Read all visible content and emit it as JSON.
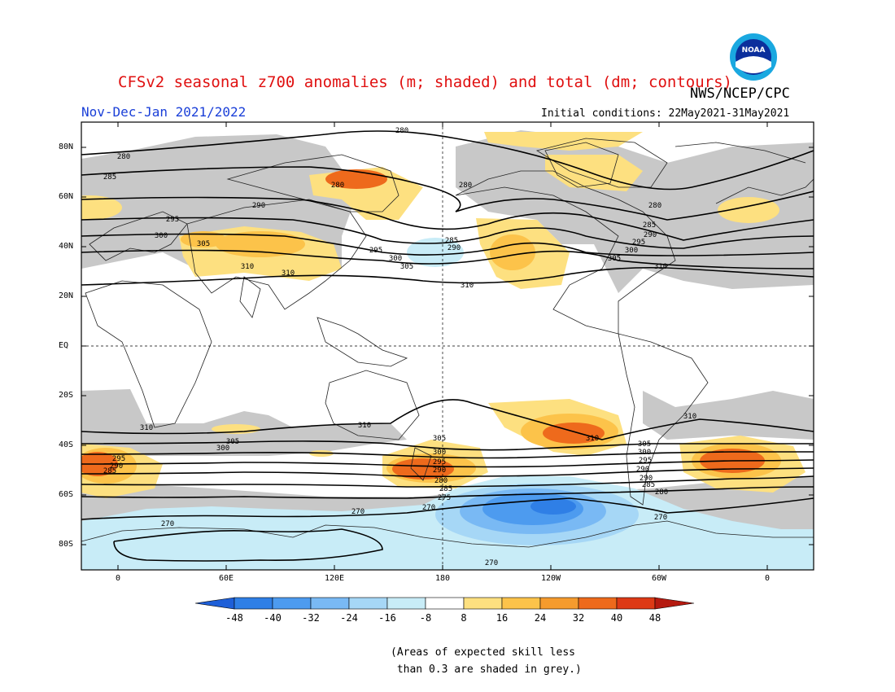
{
  "header": {
    "title": "CFSv2 seasonal z700 anomalies (m; shaded) and total (dm; contours)",
    "agency": "NWS/NCEP/CPC",
    "period": "Nov-Dec-Jan 2021/2022",
    "initial_conditions": "Initial conditions: 22May2021-31May2021",
    "logo_text": "NOAA"
  },
  "map": {
    "lat_labels": [
      "80N",
      "60N",
      "40N",
      "20N",
      "EQ",
      "20S",
      "40S",
      "60S",
      "80S"
    ],
    "lon_labels": [
      "0",
      "60E",
      "120E",
      "180",
      "120W",
      "60W",
      "0"
    ],
    "contour_labels": [
      "280",
      "285",
      "290",
      "295",
      "300",
      "305",
      "310",
      "305",
      "300",
      "295",
      "290",
      "285",
      "280",
      "275",
      "270"
    ],
    "grey_meaning": "low skill"
  },
  "colorbar": {
    "ticks": [
      "-48",
      "-40",
      "-32",
      "-24",
      "-16",
      "-8",
      "8",
      "16",
      "24",
      "32",
      "40",
      "48"
    ],
    "colors": [
      "#1e5fd8",
      "#2f7fe6",
      "#4d9bef",
      "#79b9f4",
      "#a6d7f6",
      "#c8ecf7",
      "#ffffff",
      "#fde080",
      "#fcc34a",
      "#f59b2d",
      "#ee6a1c",
      "#dd3a16",
      "#b51a10"
    ]
  },
  "note": "(Areas of expected skill less\n than 0.3 are shaded in grey.)"
}
